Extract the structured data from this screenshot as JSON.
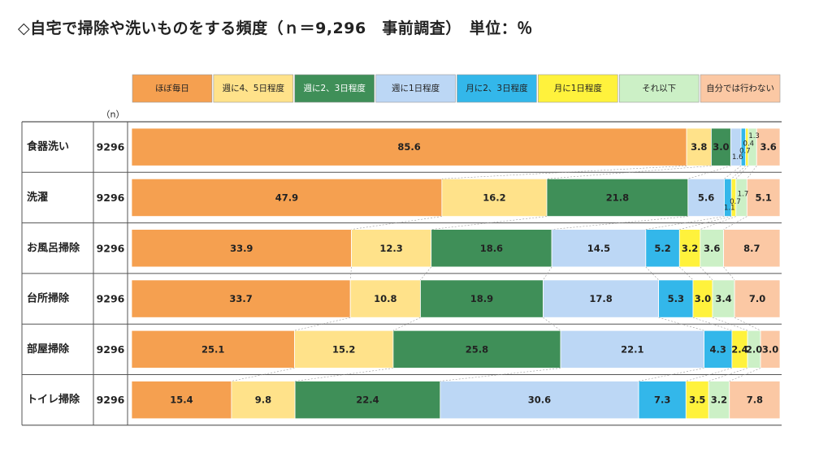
{
  "title": "◇自宅で掃除や洗いものをする頻度（ｎ＝9,296　事前調査）　単位：％",
  "n_header": "（n）",
  "chart_data": {
    "type": "bar",
    "orientation": "horizontal",
    "stacked": "100%",
    "title": "◇自宅で掃除や洗いものをする頻度（ｎ＝9,296　事前調査）　単位：％",
    "unit": "％",
    "legend_position": "top",
    "categories": [
      "食器洗い",
      "洗濯",
      "お風呂掃除",
      "台所掃除",
      "部屋掃除",
      "トイレ掃除"
    ],
    "n": [
      "9296",
      "9296",
      "9296",
      "9296",
      "9296",
      "9296"
    ],
    "series": [
      {
        "name": "ほぼ毎日",
        "color": "#f5a050",
        "values": [
          85.6,
          47.9,
          33.9,
          33.7,
          25.1,
          15.4
        ]
      },
      {
        "name": "週に4、5日程度",
        "color": "#ffe28a",
        "values": [
          3.8,
          16.2,
          12.3,
          10.8,
          15.2,
          9.8
        ]
      },
      {
        "name": "週に2、3日程度",
        "color": "#3f8f58",
        "values": [
          3.0,
          21.8,
          18.6,
          18.9,
          25.8,
          22.4
        ]
      },
      {
        "name": "週に1日程度",
        "color": "#bcd7f5",
        "values": [
          1.6,
          5.6,
          14.5,
          17.8,
          22.1,
          30.6
        ]
      },
      {
        "name": "月に2、3日程度",
        "color": "#33b7ea",
        "values": [
          0.7,
          1.1,
          5.2,
          5.3,
          4.3,
          7.3
        ]
      },
      {
        "name": "月に1日程度",
        "color": "#fff23c",
        "values": [
          0.4,
          0.7,
          3.2,
          3.0,
          2.4,
          3.5
        ]
      },
      {
        "name": "それ以下",
        "color": "#ccf0c6",
        "values": [
          1.3,
          1.7,
          3.6,
          3.4,
          2.0,
          3.2
        ]
      },
      {
        "name": "自分では行わない",
        "color": "#fbc8a4",
        "values": [
          3.6,
          5.1,
          8.7,
          7.0,
          3.0,
          7.8
        ]
      }
    ]
  }
}
